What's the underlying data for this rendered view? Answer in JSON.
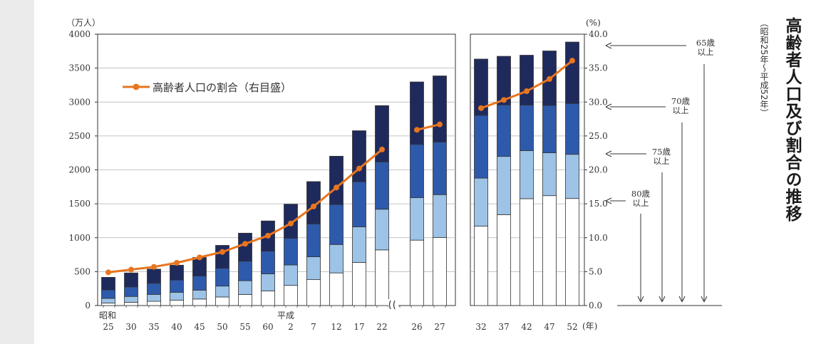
{
  "title": "高齢者人口及び割合の推移",
  "subtitle": "（昭和25年～平成52年）",
  "chart_data": {
    "type": "bar",
    "left_unit": "（万人）",
    "right_unit": "(%)",
    "year_unit": "(年)",
    "ylim": [
      0,
      4000
    ],
    "y2lim": [
      0,
      40
    ],
    "y_ticks": [
      "0",
      "500",
      "1000",
      "1500",
      "2000",
      "2500",
      "3000",
      "3500",
      "4000"
    ],
    "y2_ticks": [
      "0.0",
      "5.0",
      "10.0",
      "15.0",
      "20.0",
      "25.0",
      "30.0",
      "35.0",
      "40.0"
    ],
    "era_labels": [
      "昭和",
      "平成"
    ],
    "categories": [
      "25",
      "30",
      "35",
      "40",
      "45",
      "50",
      "55",
      "60",
      "2",
      "7",
      "12",
      "17",
      "22",
      "26",
      "27",
      "32",
      "37",
      "42",
      "47",
      "52"
    ],
    "series": [
      {
        "name": "80歳以上",
        "color": "#ffffff",
        "values": [
          37,
          48,
          62,
          78,
          96,
          126,
          163,
          215,
          297,
          382,
          481,
          635,
          820,
          964,
          1002,
          1170,
          1340,
          1575,
          1620,
          1578
        ]
      },
      {
        "name": "75歳以上",
        "color": "#9dc3e6",
        "values": [
          69,
          86,
          102,
          117,
          131,
          161,
          203,
          253,
          301,
          336,
          419,
          526,
          600,
          627,
          633,
          708,
          858,
          709,
          631,
          651
        ]
      },
      {
        "name": "70歳以上",
        "color": "#2e5aac",
        "values": [
          124,
          141,
          164,
          181,
          208,
          263,
          288,
          334,
          393,
          486,
          589,
          664,
          698,
          785,
          776,
          925,
          760,
          671,
          698,
          749
        ]
      },
      {
        "name": "65歳以上",
        "color": "#1f2a5c",
        "values": [
          186,
          205,
          209,
          219,
          274,
          337,
          413,
          445,
          503,
          623,
          712,
          752,
          829,
          920,
          974,
          830,
          716,
          735,
          804,
          906
        ]
      }
    ],
    "ratio_line": {
      "name": "高齢者人口の割合（右目盛）",
      "color": "#e8751f",
      "segments": [
        {
          "start": 0,
          "values": [
            4.9,
            5.3,
            5.7,
            6.3,
            7.1,
            7.9,
            9.1,
            10.3,
            12.1,
            14.6,
            17.4,
            20.2,
            23.0
          ]
        },
        {
          "start": 13,
          "values": [
            25.9,
            26.7
          ]
        },
        {
          "start": 15,
          "values": [
            29.1,
            30.3,
            31.6,
            33.4,
            36.1
          ]
        }
      ]
    },
    "annotations": [
      "65歳\n以上",
      "70歳\n以上",
      "75歳\n以上",
      "80歳\n以上"
    ]
  }
}
